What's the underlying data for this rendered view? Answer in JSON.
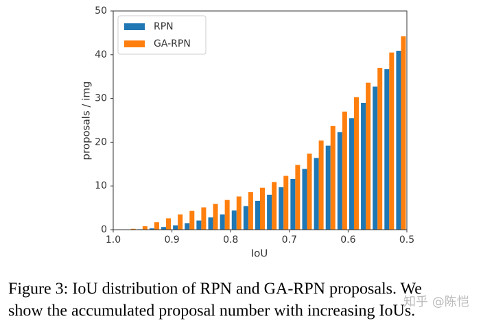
{
  "chart_data": {
    "type": "bar",
    "xlabel": "IoU",
    "ylabel": "proposals / img",
    "x": [
      0.97,
      0.95,
      0.93,
      0.91,
      0.89,
      0.87,
      0.85,
      0.83,
      0.81,
      0.79,
      0.77,
      0.75,
      0.73,
      0.71,
      0.69,
      0.67,
      0.65,
      0.63,
      0.61,
      0.59,
      0.57,
      0.55,
      0.53,
      0.51
    ],
    "series": [
      {
        "name": "RPN",
        "color": "#1f77b4",
        "values": [
          0,
          0.1,
          0.3,
          0.6,
          1.0,
          1.5,
          2.1,
          2.8,
          3.5,
          4.4,
          5.4,
          6.6,
          8.0,
          9.7,
          11.6,
          13.9,
          16.4,
          19.2,
          22.3,
          25.5,
          29.0,
          32.7,
          36.7,
          40.9
        ]
      },
      {
        "name": "GA-RPN",
        "color": "#ff7f0e",
        "values": [
          0.2,
          0.8,
          1.7,
          2.6,
          3.5,
          4.3,
          5.1,
          5.9,
          6.8,
          7.6,
          8.6,
          9.6,
          10.9,
          12.3,
          14.8,
          17.4,
          20.4,
          23.7,
          27.0,
          30.3,
          33.6,
          37.0,
          40.5,
          44.2
        ]
      }
    ],
    "xlim": [
      1.0,
      0.5
    ],
    "xticks": [
      {
        "value": 1.0,
        "label": "1.0"
      },
      0.9,
      0.8,
      0.7,
      0.6,
      0.5
    ],
    "ylim": [
      0,
      50
    ],
    "yticks": [
      0,
      10,
      20,
      30,
      40,
      50
    ],
    "legend": "upper left",
    "grid": false
  },
  "caption": [
    "Figure 3: IoU distribution of RPN and GA-RPN proposals. We",
    "show the accumulated proposal number with increasing IoUs."
  ],
  "watermark": "知乎 @陈恺"
}
